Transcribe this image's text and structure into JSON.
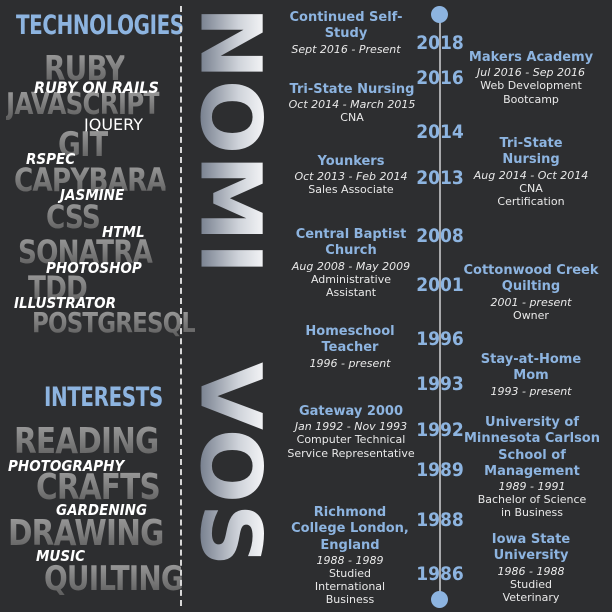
{
  "headings": {
    "technologies": "TECHNOLOGIES",
    "interests": "INTERESTS"
  },
  "technologies": {
    "ruby": "RUBY",
    "ruby_on_rails": "RUBY ON RAILS",
    "javascript": "JAVASCRIPT",
    "jquery": "JQUERY",
    "git": "GIT",
    "rspec": "RSPEC",
    "capybara": "CAPYBARA",
    "jasmine": "JASMINE",
    "css": "CSS",
    "html": "HTML",
    "sonatra": "SONATRA",
    "photoshop": "PHOTOSHOP",
    "tdd": "TDD",
    "illustrator": "ILLUSTRATOR",
    "postgresql": "POSTGRESQL"
  },
  "interests": {
    "reading": "READING",
    "photography": "PHOTOGRAPHY",
    "crafts": "CRAFTS",
    "gardening": "GARDENING",
    "drawing": "DRAWING",
    "music": "MUSIC",
    "quilting": "QUILTING"
  },
  "name": {
    "first": "NOMI",
    "last": "VOS"
  },
  "timeline": {
    "years": [
      "2018",
      "2016",
      "2014",
      "2013",
      "2008",
      "2001",
      "1996",
      "1993",
      "1992",
      "1989",
      "1988",
      "1986"
    ],
    "left": [
      {
        "title": "Continued Self-Study",
        "dates": "Sept 2016 - Present",
        "role": ""
      },
      {
        "title": "Tri-State Nursing",
        "dates": "Oct 2014 - March 2015",
        "role": "CNA"
      },
      {
        "title": "Younkers",
        "dates": "Oct 2013 - Feb 2014",
        "role": "Sales Associate"
      },
      {
        "title": "Central Baptist Church",
        "dates": "Aug 2008 - May 2009",
        "role": "Administrative Assistant"
      },
      {
        "title": "Homeschool Teacher",
        "dates": "1996 - present",
        "role": ""
      },
      {
        "title": "Gateway 2000",
        "dates": "Jan 1992 - Nov 1993",
        "role": "Computer Technical Service Representative"
      },
      {
        "title": "Richmond College London, England",
        "dates": "1988 - 1989",
        "role": "Studied International Business"
      }
    ],
    "right": [
      {
        "title": "Makers Academy",
        "dates": "Jul 2016 - Sep 2016",
        "role": "Web Development Bootcamp"
      },
      {
        "title": "Tri-State Nursing",
        "dates": "Aug 2014 - Oct 2014",
        "role": "CNA Certification"
      },
      {
        "title": "Cottonwood Creek Quilting",
        "dates": "2001 - present",
        "role": "Owner"
      },
      {
        "title": "Stay-at-Home Mom",
        "dates": "1993 - present",
        "role": ""
      },
      {
        "title": "University of Minnesota Carlson School of Management",
        "dates": "1989 - 1991",
        "role": "Bachelor of Science in Business"
      },
      {
        "title": "Iowa State University",
        "dates": "1986 - 1988",
        "role": "Studied Veterinary"
      }
    ]
  },
  "colors": {
    "background": "#2d2e30",
    "accent": "#8db4e0",
    "gray_word": "#6f6f6f",
    "timeline": "#a8a9ab"
  }
}
